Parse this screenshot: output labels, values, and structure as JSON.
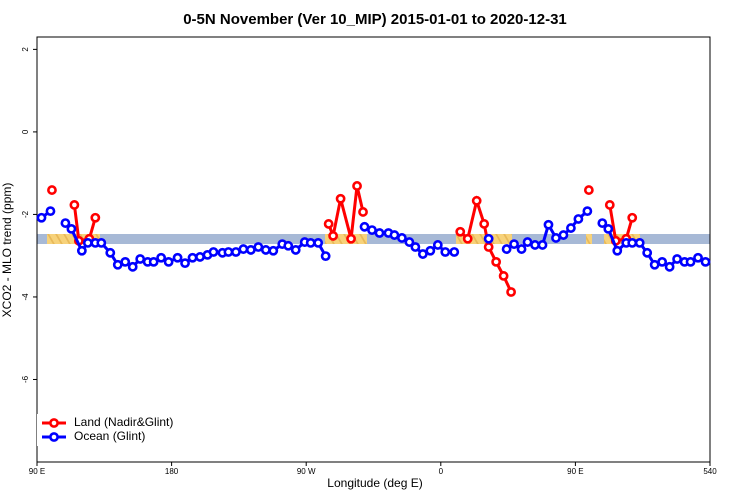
{
  "chart_data": {
    "type": "line",
    "title": "0-5N November (Ver 10_MIP)   2015-01-01 to 2020-12-31",
    "x_label": "Longitude (deg E)",
    "y_label": "XCO2 - MLO trend (ppm)",
    "xlim": [
      90,
      540
    ],
    "ylim": [
      -8,
      2.3
    ],
    "xticks": [
      {
        "value": 90,
        "label": "90 E"
      },
      180,
      {
        "value": 270,
        "label": "90 W"
      },
      {
        "value": 360,
        "label": "0"
      },
      {
        "value": 450,
        "label": "90 E"
      },
      540
    ],
    "yticks": [
      -6,
      -4,
      -2,
      0,
      2
    ],
    "legend": "bottomleft",
    "series": [
      {
        "name": "Land (Nadir&Glint)",
        "color": "#ff0000",
        "x": [
          100,
          108,
          115,
          118,
          125,
          129,
          200,
          285,
          288,
          293,
          300,
          304,
          308,
          340,
          373,
          378,
          384,
          389,
          392,
          397,
          402,
          407,
          430,
          459,
          465,
          473,
          477,
          484,
          488
        ],
        "values": [
          -1.41,
          null,
          -1.77,
          -2.64,
          -2.59,
          -2.08,
          null,
          -2.23,
          -2.52,
          -1.62,
          -2.59,
          -1.31,
          -1.94,
          null,
          -2.42,
          -2.59,
          -1.67,
          -2.23,
          -2.79,
          -3.15,
          -3.49,
          -3.88,
          null,
          -1.41,
          null,
          -1.77,
          -2.64,
          -2.59,
          -2.08
        ]
      },
      {
        "name": "Ocean (Glint)",
        "color": "#0000ff",
        "x": [
          93,
          99,
          104,
          109,
          113,
          120,
          124,
          129,
          133,
          139,
          144,
          149,
          154,
          159,
          164,
          168,
          173,
          178,
          184,
          189,
          194,
          199,
          204,
          208,
          214,
          218,
          223,
          228,
          233,
          238,
          243,
          248,
          254,
          258,
          263,
          269,
          273,
          278,
          283,
          296,
          309,
          314,
          319,
          325,
          329,
          334,
          339,
          343,
          348,
          353,
          358,
          363,
          369,
          380,
          392,
          398,
          404,
          409,
          414,
          418,
          423,
          428,
          432,
          437,
          442,
          447,
          452,
          458,
          463,
          468,
          472,
          478,
          484,
          488,
          493,
          498,
          503,
          508,
          513,
          518,
          523,
          527,
          532,
          537
        ],
        "values": [
          -2.08,
          -1.92,
          null,
          -2.21,
          -2.35,
          -2.88,
          -2.69,
          -2.69,
          -2.69,
          -2.93,
          -3.22,
          -3.15,
          -3.27,
          -3.08,
          -3.15,
          -3.15,
          -3.05,
          -3.15,
          -3.05,
          -3.18,
          -3.05,
          -3.03,
          -2.98,
          -2.91,
          -2.93,
          -2.91,
          -2.91,
          -2.84,
          -2.86,
          -2.79,
          -2.86,
          -2.88,
          -2.72,
          -2.76,
          -2.86,
          -2.67,
          -2.69,
          -2.69,
          -3.01,
          null,
          -2.3,
          -2.38,
          -2.45,
          -2.45,
          -2.5,
          -2.57,
          -2.67,
          -2.79,
          -2.96,
          -2.88,
          -2.74,
          -2.91,
          -2.91,
          null,
          -2.59,
          null,
          -2.84,
          -2.72,
          -2.84,
          -2.67,
          -2.74,
          -2.74,
          -2.25,
          -2.57,
          -2.5,
          -2.33,
          -2.11,
          -1.92,
          null,
          -2.21,
          -2.35,
          -2.88,
          -2.69,
          -2.69,
          -2.69,
          -2.93,
          -3.22,
          -3.15,
          -3.27,
          -3.08,
          -3.15,
          -3.15,
          -3.05,
          -3.15
        ]
      }
    ]
  }
}
